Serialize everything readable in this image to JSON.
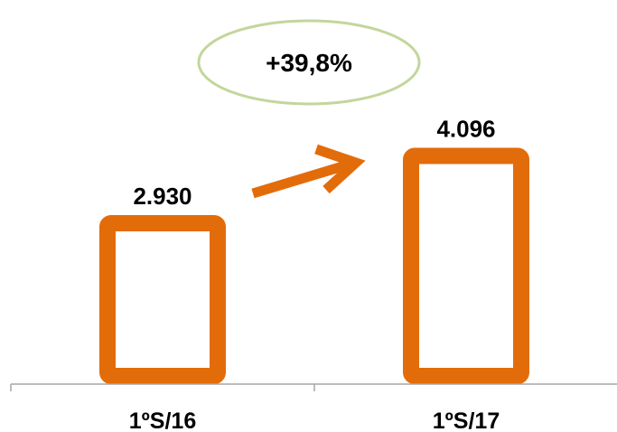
{
  "chart_data": {
    "type": "bar",
    "categories": [
      "1ºS/16",
      "1ºS/17"
    ],
    "values": [
      2930,
      4096
    ],
    "data_labels": [
      "2.930",
      "4.096"
    ],
    "annotation": "+39,8%",
    "ylim": [
      0,
      4700
    ],
    "legend": "none",
    "grid": false,
    "colors": {
      "bar_outline": "#E36C0A",
      "arrow": "#E36C0A",
      "ellipse_outline": "#C3D69B",
      "axis": "#A6A6A6"
    }
  }
}
